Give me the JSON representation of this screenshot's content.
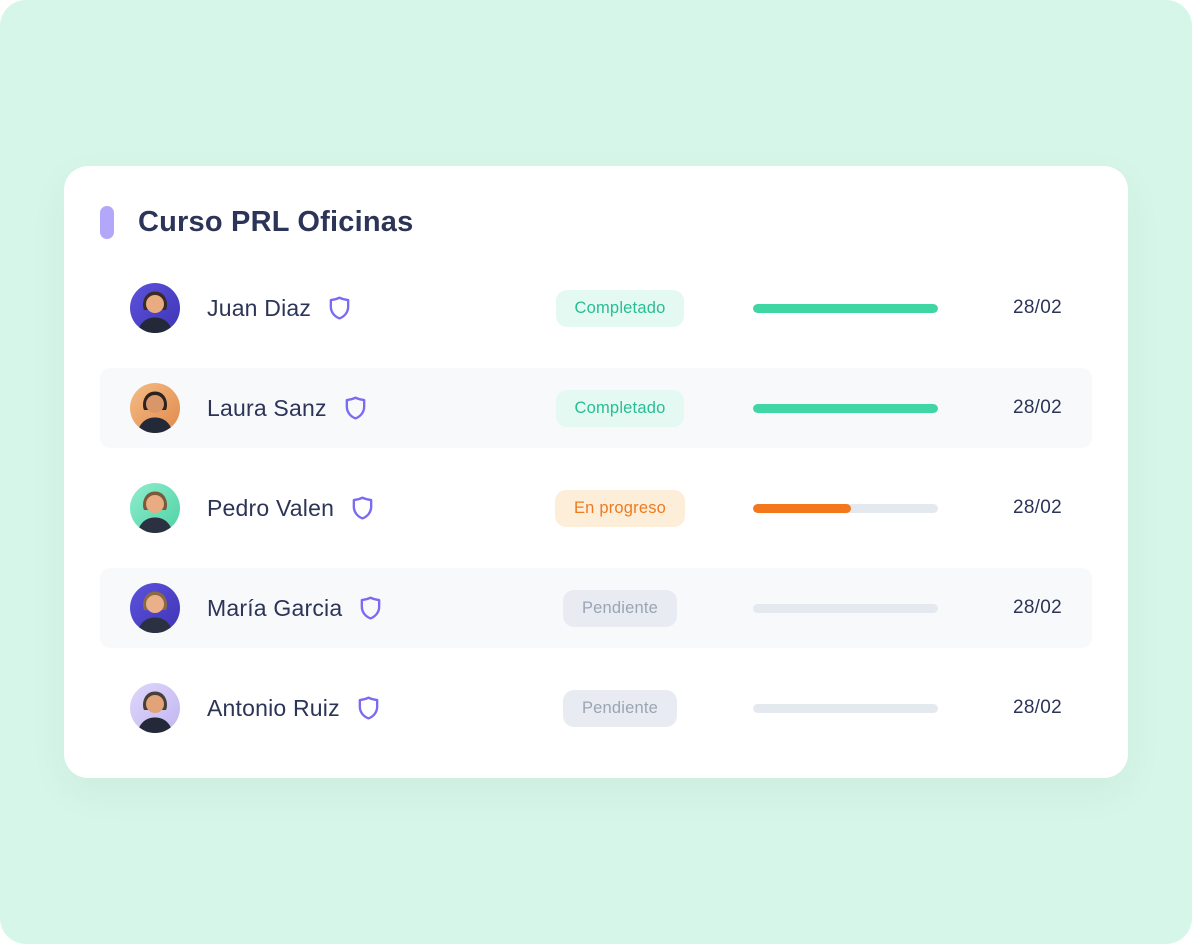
{
  "page": {
    "background_color": "#d6f6e9",
    "card_background_color": "#ffffff"
  },
  "course": {
    "title": "Curso PRL Oficinas",
    "accent_color": "#b2a7f8"
  },
  "colors": {
    "navy_text": "#2c3457",
    "stripe_row_bg": "#f7f9fb",
    "shield_icon": "#7a6bf2",
    "progress_track": "#e4e9f0",
    "completed_badge_bg": "#e4f9f1",
    "completed_badge_text": "#27be93",
    "completed_bar": "#3fd6a4",
    "in_progress_badge_bg": "#fdeeda",
    "in_progress_badge_text": "#ee7b1d",
    "in_progress_bar": "#f4771c",
    "pending_badge_bg": "#e8ecf2",
    "pending_badge_text": "#9aa5b4"
  },
  "icons": {
    "title_accent": "accent-pill",
    "member_verified": "shield-icon"
  },
  "members": [
    {
      "name": "Juan Diaz",
      "status": "Completado",
      "status_type": "completed",
      "progress_percent": 100,
      "date": "28/02",
      "avatar": {
        "from": "#5d52dd",
        "to": "#3f35b5",
        "skin": "#e9ab82",
        "shirt": "#232938",
        "hair": "#3a2c22"
      }
    },
    {
      "name": "Laura Sanz",
      "status": "Completado",
      "status_type": "completed",
      "progress_percent": 100,
      "date": "28/02",
      "avatar": {
        "from": "#f4bc85",
        "to": "#e18a4c",
        "skin": "#d99668",
        "shirt": "#232938",
        "hair": "#2c2320"
      }
    },
    {
      "name": "Pedro Valen",
      "status": "En progreso",
      "status_type": "in-progress",
      "progress_percent": 53,
      "date": "28/02",
      "avatar": {
        "from": "#8fedcd",
        "to": "#4fd2a5",
        "skin": "#e9ab82",
        "shirt": "#2b3140",
        "hair": "#7a5a3a"
      }
    },
    {
      "name": "María Garcia",
      "status": "Pendiente",
      "status_type": "pending",
      "progress_percent": 0,
      "date": "28/02",
      "avatar": {
        "from": "#5d52dd",
        "to": "#3f35b5",
        "skin": "#eab089",
        "shirt": "#2b3140",
        "hair": "#8a6a43"
      }
    },
    {
      "name": "Antonio Ruiz",
      "status": "Pendiente",
      "status_type": "pending",
      "progress_percent": 0,
      "date": "28/02",
      "avatar": {
        "from": "#ded7fa",
        "to": "#c2b6f1",
        "skin": "#e2a379",
        "shirt": "#232938",
        "hair": "#47403a"
      }
    }
  ]
}
